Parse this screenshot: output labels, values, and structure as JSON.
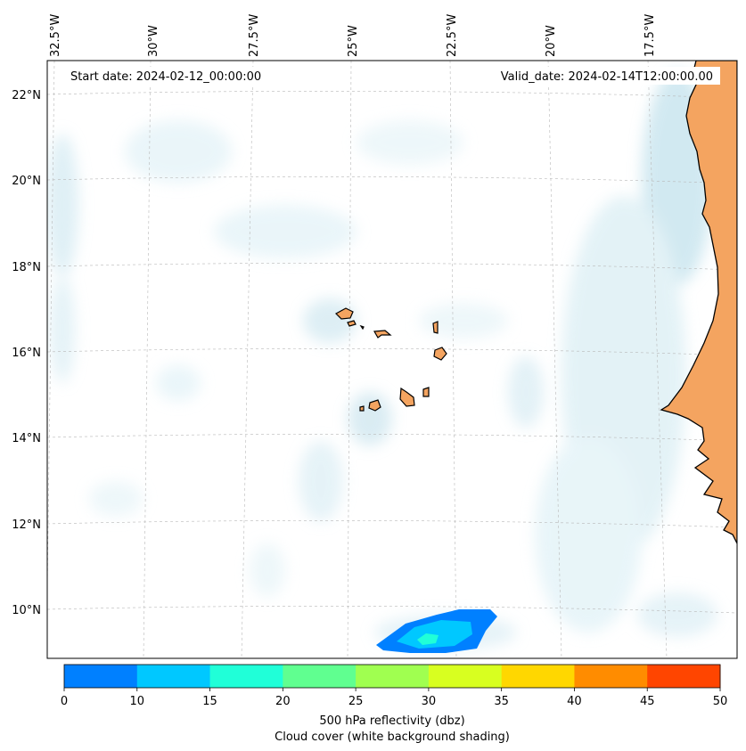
{
  "map": {
    "start_date": "Start date: 2024-02-12_00:00:00",
    "valid_date": "Valid_date: 2024-02-14T12:00:00.00",
    "lon_labels": [
      "32.5°W",
      "30°W",
      "27.5°W",
      "25°W",
      "22.5°W",
      "20°W",
      "17.5°W"
    ],
    "lat_labels": [
      "22°N",
      "20°N",
      "18°N",
      "16°N",
      "14°N",
      "12°N",
      "10°N"
    ],
    "land_color": "#f4a460",
    "cloud_color": "#add8e6",
    "ocean_color": "#ffffff",
    "reflectivity_colors": [
      "#0080ff",
      "#00c8ff",
      "#20ffd8"
    ]
  },
  "colorbar": {
    "ticks": [
      "0",
      "10",
      "15",
      "20",
      "25",
      "30",
      "35",
      "40",
      "45",
      "50"
    ],
    "colors": [
      "#0080ff",
      "#00c8ff",
      "#20ffd8",
      "#60ff90",
      "#a0ff50",
      "#d8ff20",
      "#ffd700",
      "#ff8c00",
      "#ff4500"
    ],
    "label_line1": "500 hPa reflectivity (dbz)",
    "label_line2": "Cloud cover (white background shading)"
  }
}
